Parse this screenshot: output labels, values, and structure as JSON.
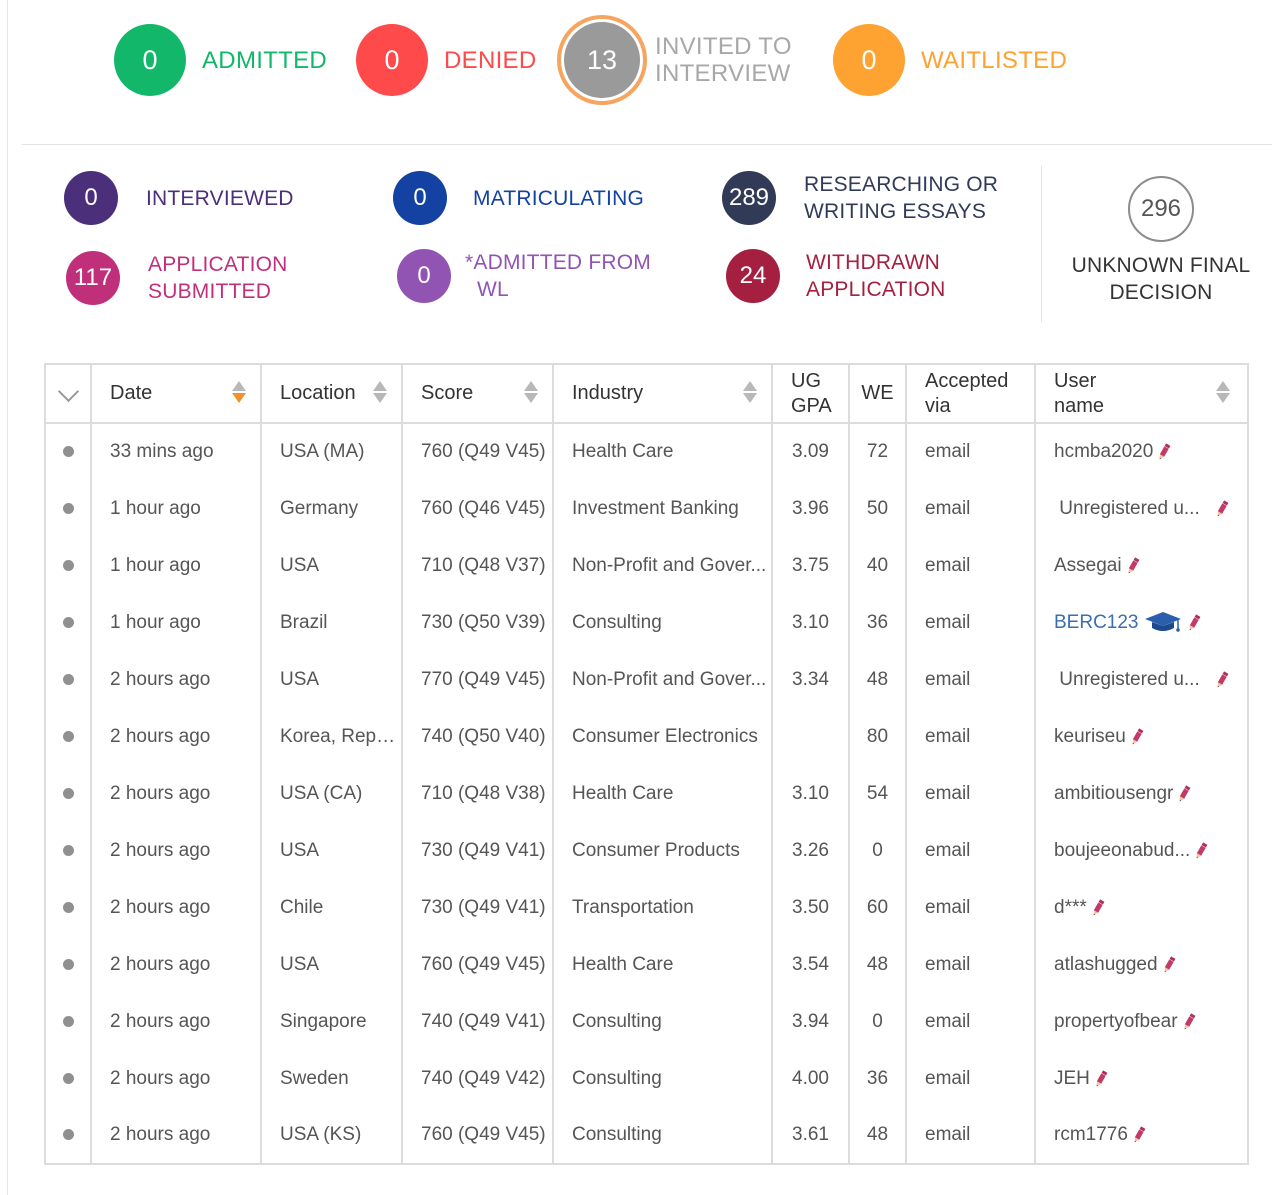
{
  "decisions": {
    "admitted": {
      "count": "0",
      "label": "ADMITTED",
      "color": "#12b76a"
    },
    "denied": {
      "count": "0",
      "label": "DENIED",
      "color": "#fe4a4a"
    },
    "invited": {
      "count": "13",
      "label_line1": "INVITED TO",
      "label_line2": "INTERVIEW",
      "color": "#9a9a9a",
      "ring": "#f5a55f"
    },
    "waitlisted": {
      "count": "0",
      "label": "WAITLISTED",
      "color": "#fea232"
    }
  },
  "statuses": {
    "interviewed": {
      "count": "0",
      "label": "INTERVIEWED",
      "color": "#4c2f7a"
    },
    "matriculating": {
      "count": "0",
      "label": "MATRICULATING",
      "color": "#1342a3"
    },
    "researching": {
      "count": "289",
      "label_line1": "RESEARCHING OR",
      "label_line2": "WRITING ESSAYS",
      "color": "#313a57"
    },
    "submitted": {
      "count": "117",
      "label_line1": "APPLICATION",
      "label_line2": "SUBMITTED",
      "color": "#c0307a"
    },
    "admitted_wl": {
      "count": "0",
      "label_line1": "*ADMITTED FROM",
      "label_line2": "WL",
      "color": "#9254b3"
    },
    "withdrawn": {
      "count": "24",
      "label_line1": "WITHDRAWN",
      "label_line2": "APPLICATION",
      "color": "#a52040"
    },
    "unknown": {
      "count": "296",
      "label_line1": "UNKNOWN FINAL",
      "label_line2": "DECISION"
    }
  },
  "table": {
    "headers": {
      "date": "Date",
      "location": "Location",
      "score": "Score",
      "industry": "Industry",
      "gpa_line1": "UG",
      "gpa_line2": "GPA",
      "we": "WE",
      "via_line1": "Accepted",
      "via_line2": "via",
      "user_line1": "User",
      "user_line2": "name"
    },
    "rows": [
      {
        "date": "33 mins ago",
        "location": "USA (MA)",
        "score": "760 (Q49 V45)",
        "industry": "Health Care",
        "gpa": "3.09",
        "we": "72",
        "via": "email",
        "user": "hcmba2020"
      },
      {
        "date": "1 hour ago",
        "location": "Germany",
        "score": "760 (Q46 V45)",
        "industry": "Investment Banking",
        "gpa": "3.96",
        "we": "50",
        "via": "email",
        "user": " Unregistered u..."
      },
      {
        "date": "1 hour ago",
        "location": "USA",
        "score": "710 (Q48 V37)",
        "industry": "Non-Profit and Gover...",
        "gpa": "3.75",
        "we": "40",
        "via": "email",
        "user": "Assegai"
      },
      {
        "date": "1 hour ago",
        "location": "Brazil",
        "score": "730 (Q50 V39)",
        "industry": "Consulting",
        "gpa": "3.10",
        "we": "36",
        "via": "email",
        "user": "BERC123"
      },
      {
        "date": "2 hours ago",
        "location": "USA",
        "score": "770 (Q49 V45)",
        "industry": "Non-Profit and Gover...",
        "gpa": "3.34",
        "we": "48",
        "via": "email",
        "user": " Unregistered u..."
      },
      {
        "date": "2 hours ago",
        "location": "Korea, Repu...",
        "score": "740 (Q50 V40)",
        "industry": "Consumer Electronics",
        "gpa": "",
        "we": "80",
        "via": "email",
        "user": "keuriseu"
      },
      {
        "date": "2 hours ago",
        "location": "USA (CA)",
        "score": "710 (Q48 V38)",
        "industry": "Health Care",
        "gpa": "3.10",
        "we": "54",
        "via": "email",
        "user": "ambitiousengr"
      },
      {
        "date": "2 hours ago",
        "location": "USA",
        "score": "730 (Q49 V41)",
        "industry": "Consumer Products",
        "gpa": "3.26",
        "we": "0",
        "via": "email",
        "user": "boujeeonabud..."
      },
      {
        "date": "2 hours ago",
        "location": "Chile",
        "score": "730 (Q49 V41)",
        "industry": "Transportation",
        "gpa": "3.50",
        "we": "60",
        "via": "email",
        "user": "d***"
      },
      {
        "date": "2 hours ago",
        "location": "USA",
        "score": "760 (Q49 V45)",
        "industry": "Health Care",
        "gpa": "3.54",
        "we": "48",
        "via": "email",
        "user": "atlashugged"
      },
      {
        "date": "2 hours ago",
        "location": "Singapore",
        "score": "740 (Q49 V41)",
        "industry": "Consulting",
        "gpa": "3.94",
        "we": "0",
        "via": "email",
        "user": "propertyofbear"
      },
      {
        "date": "2 hours ago",
        "location": "Sweden",
        "score": "740 (Q49 V42)",
        "industry": "Consulting",
        "gpa": "4.00",
        "we": "36",
        "via": "email",
        "user": "JEH"
      },
      {
        "date": "2 hours ago",
        "location": "USA (KS)",
        "score": "760 (Q49 V45)",
        "industry": "Consulting",
        "gpa": "3.61",
        "we": "48",
        "via": "email",
        "user": "rcm1776"
      }
    ]
  },
  "icons": {
    "edit": "pencil-icon",
    "graduate": "graduation-cap-icon",
    "expand": "chevron-down-icon"
  },
  "accent_colors": {
    "pencil": "#b0305c",
    "sort_active": "#f0922b",
    "link": "#3a6db2"
  }
}
